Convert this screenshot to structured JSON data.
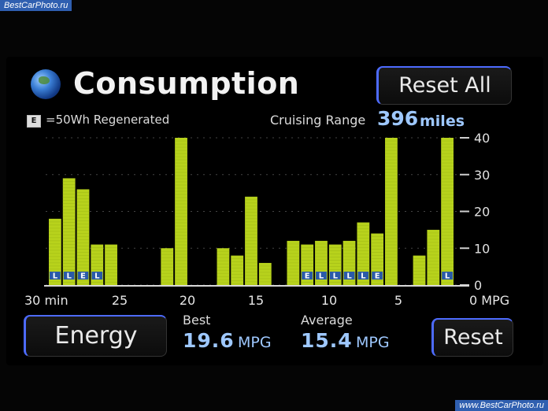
{
  "watermark": {
    "top": "BestCarPhoto.ru",
    "bottom": "www.BestCarPhoto.ru"
  },
  "header": {
    "title": "Consumption",
    "reset_all_label": "Reset All"
  },
  "legend": {
    "icon_letter": "E",
    "text": "=50Wh Regenerated"
  },
  "cruising": {
    "label": "Cruising Range",
    "value": "396",
    "unit": "miles"
  },
  "stats": {
    "best_label": "Best",
    "best_value": "19.6",
    "best_unit": "MPG",
    "average_label": "Average",
    "average_value": "15.4",
    "average_unit": "MPG"
  },
  "buttons": {
    "energy_label": "Energy",
    "reset_label": "Reset"
  },
  "chart_data": {
    "type": "bar",
    "xlabel": "min",
    "ylabel": "MPG",
    "x_ticks": [
      "30 min",
      "25",
      "20",
      "15",
      "10",
      "5",
      "0 MPG"
    ],
    "y_ticks": [
      "40",
      "30",
      "20",
      "10",
      "0"
    ],
    "ylim": [
      0,
      40
    ],
    "bar_color": "#b7d21c",
    "values": [
      18,
      29,
      26,
      11,
      11,
      0,
      0,
      0,
      10,
      40,
      0,
      0,
      10,
      8,
      24,
      6,
      0,
      12,
      11,
      12,
      11,
      12,
      17,
      14,
      40,
      0,
      8,
      15,
      40
    ],
    "regenerated": [
      1,
      1,
      1,
      1,
      0,
      0,
      0,
      0,
      0,
      0,
      0,
      0,
      0,
      0,
      0,
      0,
      0,
      0,
      1,
      1,
      1,
      1,
      1,
      1,
      0,
      0,
      0,
      0,
      1
    ],
    "regen_markers": [
      "L",
      "L",
      "E",
      "L",
      "",
      "",
      "",
      "",
      "",
      "",
      "",
      "",
      "",
      "",
      "",
      "",
      "",
      "",
      "E",
      "L",
      "L",
      "L",
      "L",
      "E",
      "",
      "",
      "",
      "",
      "L"
    ]
  }
}
